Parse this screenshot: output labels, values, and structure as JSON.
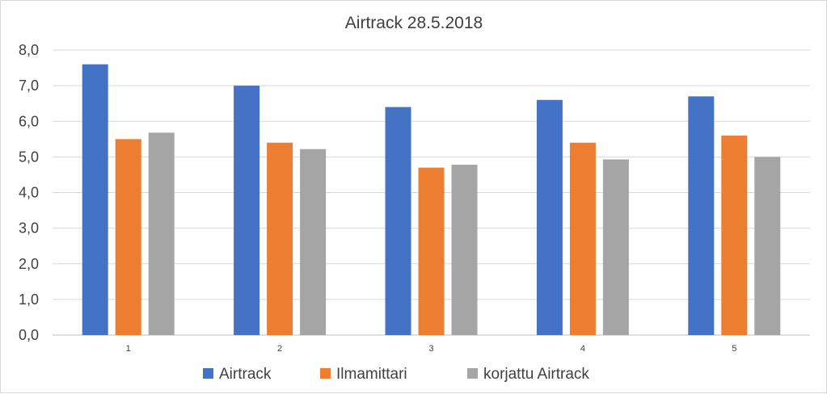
{
  "chart_data": {
    "type": "bar",
    "title": "Airtrack 28.5.2018",
    "xlabel": "",
    "ylabel": "",
    "categories": [
      "1",
      "2",
      "3",
      "4",
      "5"
    ],
    "series": [
      {
        "name": "Airtrack",
        "color": "#4472C4",
        "values": [
          7.6,
          7.0,
          6.4,
          6.6,
          6.7
        ]
      },
      {
        "name": "Ilmamittari",
        "color": "#ED7D31",
        "values": [
          5.5,
          5.4,
          4.7,
          5.4,
          5.6
        ]
      },
      {
        "name": "korjattu Airtrack",
        "color": "#A5A5A5",
        "values": [
          5.68,
          5.22,
          4.78,
          4.93,
          5.0
        ]
      }
    ],
    "ylim": [
      0,
      8
    ],
    "yticks": [
      "0,0",
      "1,0",
      "2,0",
      "3,0",
      "4,0",
      "5,0",
      "6,0",
      "7,0",
      "8,0"
    ],
    "grid": true,
    "legend_position": "bottom"
  }
}
